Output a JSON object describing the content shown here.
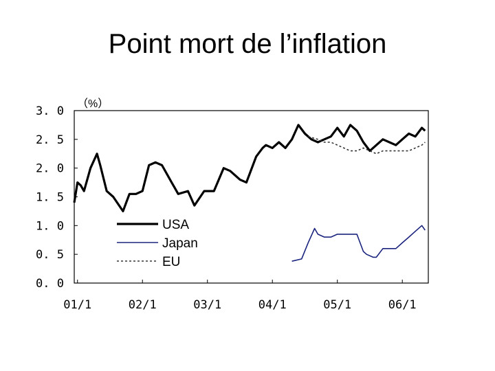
{
  "title": "Point mort de l’inflation",
  "chart_data": {
    "type": "line",
    "unit_label": "（%）",
    "ylim": [
      0,
      3.0
    ],
    "y_ticks": [
      "3. 0",
      "2. 5",
      "2. 0",
      "1. 5",
      "1. 0",
      "0. 5",
      "0. 0"
    ],
    "y_tick_values": [
      3.0,
      2.5,
      2.0,
      1.5,
      1.0,
      0.5,
      0.0
    ],
    "x_ticks": [
      "01/1",
      "02/1",
      "03/1",
      "04/1",
      "05/1",
      "06/1"
    ],
    "x_tick_values": [
      2001.0,
      2002.0,
      2003.0,
      2004.0,
      2005.0,
      2006.0
    ],
    "xlim": [
      2000.95,
      2006.4
    ],
    "grid": false,
    "legend_position": "left-center",
    "series": [
      {
        "name": "USA",
        "color": "#000000",
        "style": "solid-thick",
        "x": [
          2000.95,
          2001.0,
          2001.05,
          2001.1,
          2001.2,
          2001.3,
          2001.35,
          2001.45,
          2001.55,
          2001.7,
          2001.8,
          2001.9,
          2002.0,
          2002.1,
          2002.2,
          2002.3,
          2002.45,
          2002.55,
          2002.7,
          2002.8,
          2002.95,
          2003.1,
          2003.25,
          2003.35,
          2003.5,
          2003.6,
          2003.75,
          2003.85,
          2003.9,
          2004.0,
          2004.1,
          2004.2,
          2004.3,
          2004.4,
          2004.5,
          2004.6,
          2004.7,
          2004.8,
          2004.9,
          2005.0,
          2005.1,
          2005.2,
          2005.3,
          2005.4,
          2005.5,
          2005.6,
          2005.7,
          2005.8,
          2005.9,
          2006.0,
          2006.1,
          2006.2,
          2006.3,
          2006.35
        ],
        "values": [
          1.4,
          1.75,
          1.7,
          1.6,
          2.0,
          2.25,
          2.05,
          1.6,
          1.5,
          1.25,
          1.55,
          1.55,
          1.6,
          2.05,
          2.1,
          2.05,
          1.75,
          1.55,
          1.6,
          1.35,
          1.6,
          1.6,
          2.0,
          1.95,
          1.8,
          1.75,
          2.2,
          2.35,
          2.4,
          2.35,
          2.45,
          2.35,
          2.5,
          2.75,
          2.6,
          2.5,
          2.45,
          2.5,
          2.55,
          2.7,
          2.55,
          2.75,
          2.65,
          2.45,
          2.3,
          2.4,
          2.5,
          2.45,
          2.4,
          2.5,
          2.6,
          2.55,
          2.7,
          2.65
        ]
      },
      {
        "name": "Japan",
        "color": "#1a237e",
        "style": "solid-thin",
        "x": [
          2004.3,
          2004.45,
          2004.55,
          2004.65,
          2004.7,
          2004.8,
          2004.9,
          2005.0,
          2005.1,
          2005.2,
          2005.3,
          2005.4,
          2005.45,
          2005.55,
          2005.6,
          2005.7,
          2005.8,
          2005.9,
          2006.0,
          2006.1,
          2006.2,
          2006.3,
          2006.35
        ],
        "values": [
          0.38,
          0.42,
          0.7,
          0.95,
          0.85,
          0.8,
          0.8,
          0.85,
          0.85,
          0.85,
          0.85,
          0.55,
          0.5,
          0.45,
          0.45,
          0.6,
          0.6,
          0.6,
          0.7,
          0.8,
          0.9,
          1.0,
          0.92
        ]
      },
      {
        "name": "EU",
        "color": "#333333",
        "style": "dotted",
        "x": [
          2004.55,
          2004.7,
          2004.8,
          2004.9,
          2005.0,
          2005.1,
          2005.2,
          2005.3,
          2005.4,
          2005.5,
          2005.6,
          2005.7,
          2005.8,
          2005.9,
          2006.0,
          2006.1,
          2006.2,
          2006.3,
          2006.35
        ],
        "values": [
          2.55,
          2.5,
          2.45,
          2.45,
          2.4,
          2.35,
          2.3,
          2.3,
          2.35,
          2.3,
          2.25,
          2.3,
          2.3,
          2.3,
          2.3,
          2.3,
          2.35,
          2.4,
          2.45
        ]
      }
    ]
  }
}
